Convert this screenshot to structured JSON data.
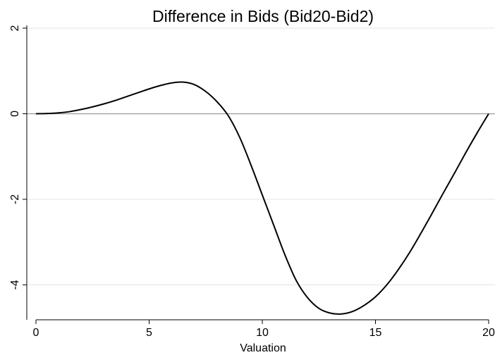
{
  "chart_data": {
    "type": "line",
    "title": "Difference in Bids (Bid20-Bid2)",
    "xlabel": "Valuation",
    "ylabel": "",
    "xlim": [
      0,
      20
    ],
    "ylim": [
      -4.8,
      2
    ],
    "xticks": [
      0,
      5,
      10,
      15,
      20
    ],
    "yticks": [
      2,
      0,
      -2,
      -4
    ],
    "grid": "horizontal",
    "reference_line_y": 0,
    "series": [
      {
        "color": "#000000",
        "x": [
          0,
          0.5,
          1,
          1.5,
          2,
          2.5,
          3,
          3.5,
          4,
          4.5,
          5,
          5.5,
          6,
          6.5,
          7,
          7.5,
          8,
          8.5,
          9,
          9.5,
          10,
          10.5,
          11,
          11.5,
          12,
          12.5,
          13,
          13.5,
          14,
          14.5,
          15,
          15.5,
          16,
          16.5,
          17,
          17.5,
          18,
          18.5,
          19,
          19.5,
          20
        ],
        "y": [
          0,
          0.005,
          0.02,
          0.05,
          0.1,
          0.16,
          0.23,
          0.31,
          0.4,
          0.49,
          0.58,
          0.66,
          0.72,
          0.74,
          0.68,
          0.52,
          0.28,
          -0.05,
          -0.55,
          -1.2,
          -1.9,
          -2.6,
          -3.3,
          -3.9,
          -4.3,
          -4.55,
          -4.66,
          -4.68,
          -4.62,
          -4.48,
          -4.28,
          -4.0,
          -3.65,
          -3.25,
          -2.8,
          -2.33,
          -1.85,
          -1.38,
          -0.9,
          -0.44,
          0
        ]
      }
    ]
  }
}
